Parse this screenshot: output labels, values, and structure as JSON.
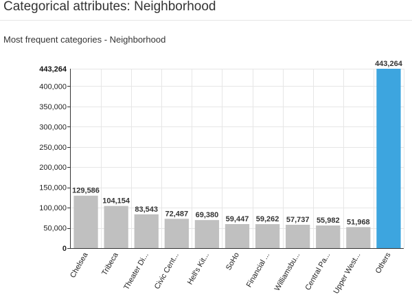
{
  "page": {
    "title": "Categorical attributes: Neighborhood"
  },
  "chart_data": {
    "type": "bar",
    "title": "Most frequent categories - Neighborhood",
    "xlabel": "",
    "ylabel": "",
    "ylim": [
      0,
      443264
    ],
    "y_ticks": [
      50000,
      100000,
      150000,
      200000,
      250000,
      300000,
      350000,
      400000
    ],
    "y_tick_labels": [
      "50,000",
      "100,000",
      "150,000",
      "200,000",
      "250,000",
      "300,000",
      "350,000",
      "400,000"
    ],
    "y_zero_label": "0",
    "y_max_label": "443,264",
    "grid": true,
    "categories": [
      "Chelsea",
      "Tribeca",
      "Theater Di...",
      "Civic Cent...",
      "Hell's Kit...",
      "SoHo",
      "Financial ...",
      "Williamsbu...",
      "Central Pa...",
      "Upper West...",
      "Others"
    ],
    "values": [
      129586,
      104154,
      83543,
      72487,
      69380,
      59447,
      59262,
      57737,
      55982,
      51968,
      443264
    ],
    "value_labels": [
      "129,586",
      "104,154",
      "83,543",
      "72,487",
      "69,380",
      "59,447",
      "59,262",
      "57,737",
      "55,982",
      "51,968",
      "443,264"
    ],
    "colors": {
      "bar": "#c0c0c0",
      "highlight_bar": "#3da5df",
      "grid": "#e6e6e6",
      "axis": "#333333"
    },
    "highlight_category": "Others"
  }
}
